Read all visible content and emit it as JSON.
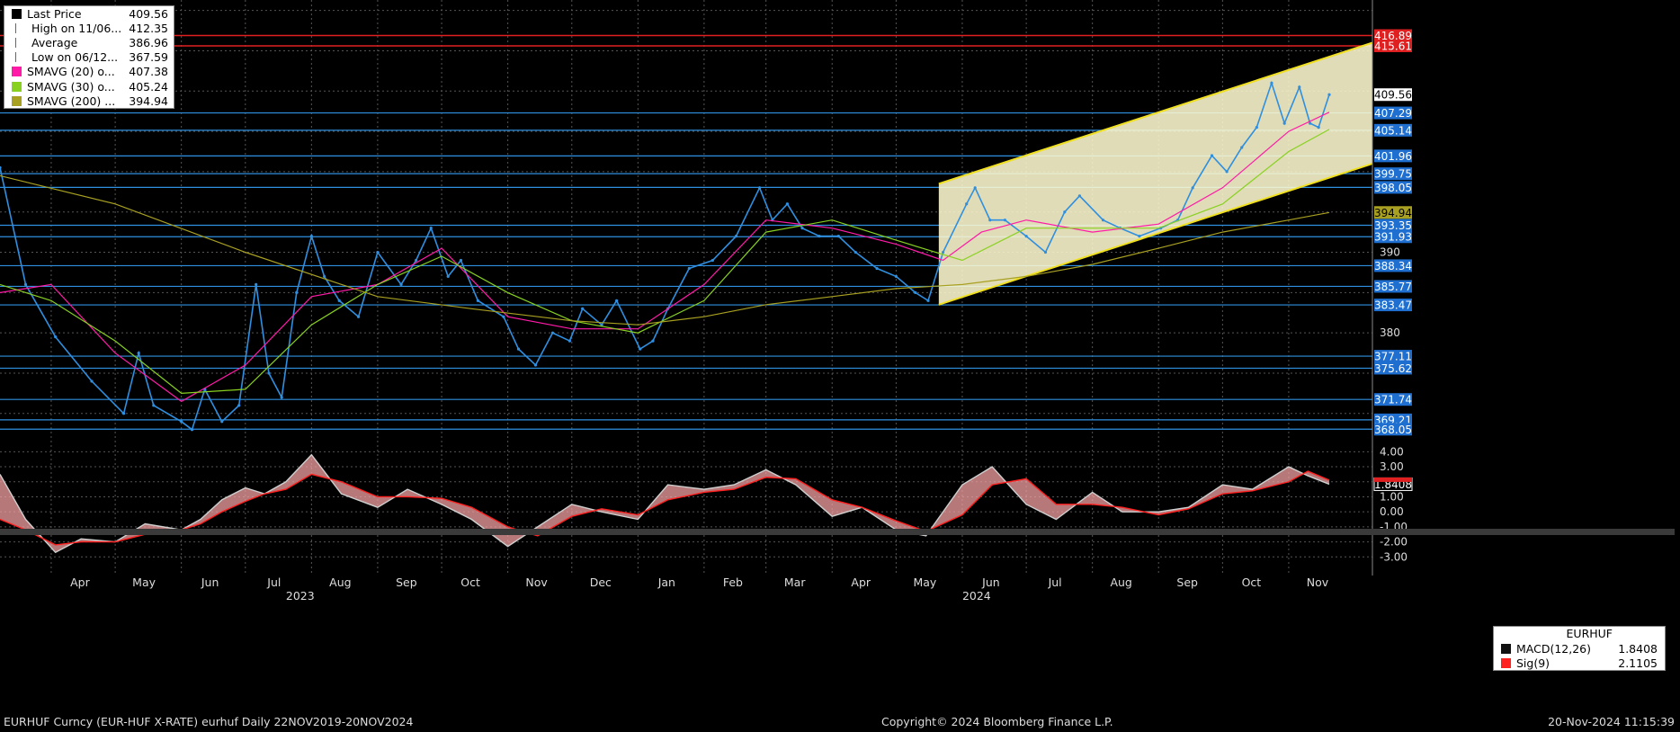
{
  "legend": [
    {
      "label": "Last Price",
      "value": "409.56",
      "color": "#000000",
      "icon": "square-marker-icon"
    },
    {
      "label": "High on 11/06...",
      "value": "412.35",
      "color": "#ffffff",
      "icon": "high-marker-icon"
    },
    {
      "label": "Average",
      "value": "386.96",
      "color": "#ffffff",
      "icon": "average-marker-icon"
    },
    {
      "label": "Low on 06/12...",
      "value": "367.59",
      "color": "#ffffff",
      "icon": "low-marker-icon"
    },
    {
      "label": "SMAVG (20)  o...",
      "value": "407.38",
      "color": "#ff1aa8",
      "icon": "swatch-icon"
    },
    {
      "label": "SMAVG (30)  o...",
      "value": "405.24",
      "color": "#88d120",
      "icon": "swatch-icon"
    },
    {
      "label": "SMAVG (200)  ...",
      "value": "394.94",
      "color": "#a8a020",
      "icon": "swatch-icon"
    }
  ],
  "macd_legend": {
    "title": "EURHUF",
    "rows": [
      {
        "label": "MACD(12,26)",
        "value": "1.8408",
        "color": "#111111"
      },
      {
        "label": "Sig(9)",
        "value": "2.1105",
        "color": "#ff2020"
      }
    ]
  },
  "footer": {
    "left": "EURHUF Curncy (EUR-HUF X-RATE) eurhuf  Daily 22NOV2019-20NOV2024",
    "center": "Copyright© 2024 Bloomberg Finance L.P.",
    "right": "20-Nov-2024 11:15:39"
  },
  "chart_data": {
    "type": "line",
    "title": "",
    "xlabel": "",
    "ylabel": "",
    "months": [
      "Apr",
      "May",
      "Jun",
      "Jul",
      "Aug",
      "Sep",
      "Oct",
      "Nov",
      "Dec",
      "Jan",
      "Feb",
      "Mar",
      "Apr",
      "May",
      "Jun",
      "Jul",
      "Aug",
      "Sep",
      "Oct",
      "Nov"
    ],
    "years": [
      "2023",
      "2024"
    ],
    "price_ylim": [
      367.3,
      421.3
    ],
    "price_ticks": [
      380,
      390
    ],
    "right_labels": [
      {
        "text": "416.89",
        "kind": "red"
      },
      {
        "text": "415.61",
        "kind": "red"
      },
      {
        "text": "409.56",
        "kind": "last"
      },
      {
        "text": "407.29",
        "kind": "blue"
      },
      {
        "text": "405.14",
        "kind": "blue"
      },
      {
        "text": "401.96",
        "kind": "blue"
      },
      {
        "text": "399.75",
        "kind": "blue"
      },
      {
        "text": "398.05",
        "kind": "blue"
      },
      {
        "text": "394.94",
        "kind": "sma200"
      },
      {
        "text": "393.35",
        "kind": "blue"
      },
      {
        "text": "391.93",
        "kind": "blue"
      },
      {
        "text": "388.34",
        "kind": "blue"
      },
      {
        "text": "385.77",
        "kind": "blue"
      },
      {
        "text": "383.47",
        "kind": "blue"
      },
      {
        "text": "377.11",
        "kind": "blue"
      },
      {
        "text": "375.62",
        "kind": "blue"
      },
      {
        "text": "371.74",
        "kind": "blue"
      },
      {
        "text": "369.21",
        "kind": "blue"
      },
      {
        "text": "368.05",
        "kind": "blue"
      }
    ],
    "series": [
      {
        "name": "Last Price",
        "dates": [
          "2023-03-08",
          "2023-03-20",
          "2023-04-03",
          "2023-04-20",
          "2023-05-05",
          "2023-05-12",
          "2023-05-19",
          "2023-06-01",
          "2023-06-06",
          "2023-06-12",
          "2023-06-20",
          "2023-06-28",
          "2023-07-06",
          "2023-07-12",
          "2023-07-18",
          "2023-07-25",
          "2023-08-01",
          "2023-08-07",
          "2023-08-14",
          "2023-08-23",
          "2023-09-01",
          "2023-09-12",
          "2023-09-19",
          "2023-09-26",
          "2023-10-04",
          "2023-10-10",
          "2023-10-18",
          "2023-10-30",
          "2023-11-06",
          "2023-11-14",
          "2023-11-22",
          "2023-11-30",
          "2023-12-06",
          "2023-12-15",
          "2023-12-22",
          "2024-01-02",
          "2024-01-08",
          "2024-01-15",
          "2024-01-25",
          "2024-02-05",
          "2024-02-16",
          "2024-02-27",
          "2024-03-04",
          "2024-03-11",
          "2024-03-18",
          "2024-03-26",
          "2024-04-04",
          "2024-04-12",
          "2024-04-22",
          "2024-05-01",
          "2024-05-10",
          "2024-05-16",
          "2024-05-23",
          "2024-06-03",
          "2024-06-07",
          "2024-06-14",
          "2024-06-21",
          "2024-07-01",
          "2024-07-10",
          "2024-07-19",
          "2024-07-26",
          "2024-08-06",
          "2024-08-14",
          "2024-08-23",
          "2024-09-02",
          "2024-09-10",
          "2024-09-17",
          "2024-09-26",
          "2024-10-03",
          "2024-10-10",
          "2024-10-17",
          "2024-10-24",
          "2024-10-30",
          "2024-11-06",
          "2024-11-11",
          "2024-11-15",
          "2024-11-20"
        ],
        "values": [
          400.5,
          386.0,
          379.5,
          374.0,
          370.0,
          377.5,
          371.0,
          369.0,
          368.0,
          373.0,
          369.0,
          371.0,
          386.0,
          375.0,
          372.0,
          385.0,
          392.0,
          387.0,
          384.0,
          382.0,
          390.0,
          386.0,
          389.0,
          393.0,
          387.0,
          389.0,
          384.0,
          382.0,
          378.0,
          376.0,
          380.0,
          379.0,
          383.0,
          381.0,
          384.0,
          378.0,
          379.0,
          383.0,
          388.0,
          389.0,
          392.0,
          398.0,
          394.0,
          396.0,
          393.0,
          392.0,
          392.0,
          390.0,
          388.0,
          387.0,
          385.0,
          384.0,
          390.0,
          396.0,
          398.0,
          394.0,
          394.0,
          392.0,
          390.0,
          395.0,
          397.0,
          394.0,
          393.0,
          392.0,
          393.0,
          394.0,
          398.0,
          402.0,
          400.0,
          403.0,
          405.5,
          411.0,
          406.0,
          410.5,
          406.0,
          405.5,
          409.56
        ],
        "color": "#2f8fe0"
      },
      {
        "name": "SMAVG (20)",
        "dates": [
          "2023-03-08",
          "2023-04-01",
          "2023-05-01",
          "2023-06-01",
          "2023-07-01",
          "2023-08-01",
          "2023-09-01",
          "2023-10-01",
          "2023-11-01",
          "2023-12-01",
          "2024-01-01",
          "2024-02-01",
          "2024-03-01",
          "2024-04-01",
          "2024-05-01",
          "2024-05-23",
          "2024-06-10",
          "2024-07-01",
          "2024-08-01",
          "2024-09-01",
          "2024-10-01",
          "2024-11-01",
          "2024-11-20"
        ],
        "values": [
          385.0,
          386.0,
          377.5,
          371.5,
          376.0,
          384.5,
          386.0,
          390.5,
          382.0,
          380.5,
          380.5,
          386.0,
          394.0,
          393.0,
          391.0,
          389.0,
          392.5,
          394.0,
          392.5,
          393.5,
          398.0,
          405.0,
          407.38
        ],
        "color": "#ff1aa8"
      },
      {
        "name": "SMAVG (30)",
        "dates": [
          "2023-03-08",
          "2023-04-01",
          "2023-05-01",
          "2023-06-01",
          "2023-07-01",
          "2023-08-01",
          "2023-09-01",
          "2023-10-01",
          "2023-11-01",
          "2023-12-01",
          "2024-01-01",
          "2024-02-01",
          "2024-03-01",
          "2024-04-01",
          "2024-05-01",
          "2024-06-01",
          "2024-07-01",
          "2024-08-01",
          "2024-09-01",
          "2024-10-01",
          "2024-11-01",
          "2024-11-20"
        ],
        "values": [
          386.0,
          384.0,
          379.0,
          372.5,
          373.0,
          381.0,
          386.0,
          389.5,
          385.0,
          381.5,
          380.0,
          384.0,
          392.5,
          394.0,
          391.5,
          389.0,
          393.0,
          393.0,
          393.0,
          396.0,
          402.5,
          405.24
        ],
        "color": "#88d120"
      },
      {
        "name": "SMAVG (200)",
        "dates": [
          "2023-03-08",
          "2023-05-01",
          "2023-07-01",
          "2023-09-01",
          "2023-10-15",
          "2023-12-01",
          "2024-01-01",
          "2024-02-01",
          "2024-03-01",
          "2024-04-01",
          "2024-05-01",
          "2024-06-01",
          "2024-07-01",
          "2024-08-01",
          "2024-09-01",
          "2024-10-01",
          "2024-11-01",
          "2024-11-20"
        ],
        "values": [
          399.5,
          396.0,
          390.0,
          384.5,
          383.0,
          381.5,
          381.0,
          382.0,
          383.5,
          384.5,
          385.5,
          386.0,
          387.0,
          388.5,
          390.5,
          392.5,
          394.0,
          394.94
        ],
        "color": "#a8a020"
      }
    ],
    "channel": {
      "upper": {
        "from": [
          "2024-05-21",
          398.5
        ],
        "to": [
          "2024-11-20",
          416.0
        ]
      },
      "lower": {
        "from": [
          "2024-05-21",
          383.5
        ],
        "to": [
          "2024-11-20",
          401.0
        ]
      }
    },
    "macd": {
      "ylim": [
        -4.0,
        4.5
      ],
      "ticks": [
        "4.00",
        "3.00",
        "2.00",
        "1.00",
        "0.00",
        "-1.00",
        "-2.00",
        "-3.00"
      ],
      "tick_values": [
        4,
        3,
        2,
        1,
        0,
        -1,
        -2,
        -3
      ],
      "dates": [
        "2023-03-08",
        "2023-03-20",
        "2023-04-03",
        "2023-04-15",
        "2023-05-01",
        "2023-05-15",
        "2023-06-01",
        "2023-06-10",
        "2023-06-20",
        "2023-07-01",
        "2023-07-10",
        "2023-07-20",
        "2023-08-01",
        "2023-08-15",
        "2023-09-01",
        "2023-09-15",
        "2023-10-01",
        "2023-10-15",
        "2023-11-01",
        "2023-11-15",
        "2023-12-01",
        "2023-12-15",
        "2024-01-01",
        "2024-01-15",
        "2024-02-01",
        "2024-02-15",
        "2024-03-01",
        "2024-03-15",
        "2024-04-01",
        "2024-04-15",
        "2024-05-01",
        "2024-05-15",
        "2024-06-01",
        "2024-06-15",
        "2024-07-01",
        "2024-07-15",
        "2024-08-01",
        "2024-08-15",
        "2024-09-01",
        "2024-09-15",
        "2024-10-01",
        "2024-10-15",
        "2024-11-01",
        "2024-11-10",
        "2024-11-20"
      ],
      "macd": [
        2.5,
        -0.5,
        -2.7,
        -1.8,
        -2.0,
        -0.8,
        -1.2,
        -0.5,
        0.8,
        1.6,
        1.2,
        2.0,
        3.8,
        1.2,
        0.3,
        1.5,
        0.5,
        -0.5,
        -2.3,
        -1.0,
        0.5,
        0.0,
        -0.5,
        1.8,
        1.5,
        1.8,
        2.8,
        1.8,
        -0.3,
        0.3,
        -1.2,
        -1.6,
        1.8,
        3.0,
        0.5,
        -0.5,
        1.3,
        0.0,
        0.0,
        0.3,
        1.8,
        1.5,
        3.0,
        2.4,
        1.84
      ],
      "signal": [
        -0.5,
        -1.2,
        -2.2,
        -2.0,
        -2.0,
        -1.5,
        -1.2,
        -0.8,
        0.0,
        0.7,
        1.2,
        1.5,
        2.5,
        2.0,
        1.0,
        1.0,
        0.9,
        0.3,
        -1.0,
        -1.6,
        -0.3,
        0.2,
        -0.2,
        0.8,
        1.3,
        1.5,
        2.3,
        2.2,
        0.8,
        0.3,
        -0.6,
        -1.3,
        -0.2,
        1.8,
        2.2,
        0.5,
        0.5,
        0.3,
        -0.2,
        0.2,
        1.2,
        1.4,
        2.0,
        2.7,
        2.11
      ]
    }
  }
}
